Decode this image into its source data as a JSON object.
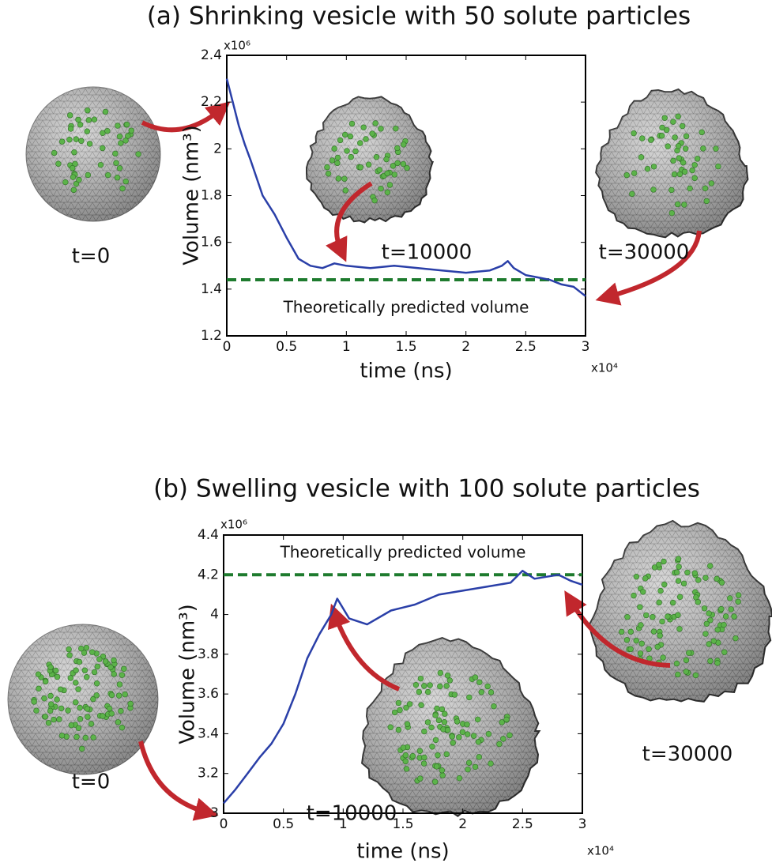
{
  "chart_data": [
    {
      "type": "line",
      "title": "(a) Shrinking vesicle with 50 solute particles",
      "xlabel": "time (ns)",
      "ylabel": "Volume (nm³)",
      "x_multiplier": "x10⁴",
      "y_multiplier": "x10⁶",
      "xlim": [
        0,
        3
      ],
      "ylim": [
        1.2,
        2.4
      ],
      "xticks": [
        0,
        0.5,
        1,
        1.5,
        2,
        2.5,
        3
      ],
      "yticks": [
        1.2,
        1.4,
        1.6,
        1.8,
        2,
        2.2,
        2.4
      ],
      "x": [
        0,
        0.05,
        0.1,
        0.15,
        0.2,
        0.3,
        0.4,
        0.5,
        0.6,
        0.7,
        0.8,
        0.9,
        1.0,
        1.2,
        1.4,
        1.6,
        1.8,
        2.0,
        2.2,
        2.3,
        2.35,
        2.4,
        2.5,
        2.6,
        2.7,
        2.8,
        2.9,
        3.0
      ],
      "series": [
        {
          "color": "#2a3fa8",
          "values": [
            2.3,
            2.2,
            2.1,
            2.02,
            1.95,
            1.8,
            1.72,
            1.62,
            1.53,
            1.5,
            1.49,
            1.51,
            1.5,
            1.49,
            1.5,
            1.49,
            1.48,
            1.47,
            1.48,
            1.5,
            1.52,
            1.49,
            1.46,
            1.45,
            1.44,
            1.42,
            1.41,
            1.37
          ]
        }
      ],
      "reference_line": {
        "value": 1.44,
        "label": "Theoretically predicted volume",
        "color": "#1e7b2e"
      },
      "annotations": [
        "t=0",
        "t=10000",
        "t=30000"
      ]
    },
    {
      "type": "line",
      "title": "(b) Swelling vesicle with 100 solute particles",
      "xlabel": "time (ns)",
      "ylabel": "Volume (nm³)",
      "x_multiplier": "x10⁴",
      "y_multiplier": "x10⁶",
      "xlim": [
        0,
        3
      ],
      "ylim": [
        3,
        4.4
      ],
      "xticks": [
        0,
        0.5,
        1,
        1.5,
        2,
        2.5,
        3
      ],
      "yticks": [
        3,
        3.2,
        3.4,
        3.6,
        3.8,
        4,
        4.2,
        4.4
      ],
      "x": [
        0,
        0.1,
        0.2,
        0.3,
        0.4,
        0.5,
        0.6,
        0.7,
        0.8,
        0.9,
        0.95,
        1.05,
        1.2,
        1.4,
        1.6,
        1.8,
        2.0,
        2.2,
        2.4,
        2.5,
        2.6,
        2.8,
        2.9,
        3.0
      ],
      "series": [
        {
          "color": "#2a3fa8",
          "values": [
            3.05,
            3.12,
            3.2,
            3.28,
            3.35,
            3.45,
            3.6,
            3.78,
            3.9,
            4.0,
            4.08,
            3.98,
            3.95,
            4.02,
            4.05,
            4.1,
            4.12,
            4.14,
            4.16,
            4.22,
            4.18,
            4.2,
            4.17,
            4.15
          ]
        }
      ],
      "reference_line": {
        "value": 4.2,
        "label": "Theoretically predicted volume",
        "color": "#1e7b2e"
      },
      "annotations": [
        "t=0",
        "t=10000",
        "t=30000"
      ]
    }
  ]
}
